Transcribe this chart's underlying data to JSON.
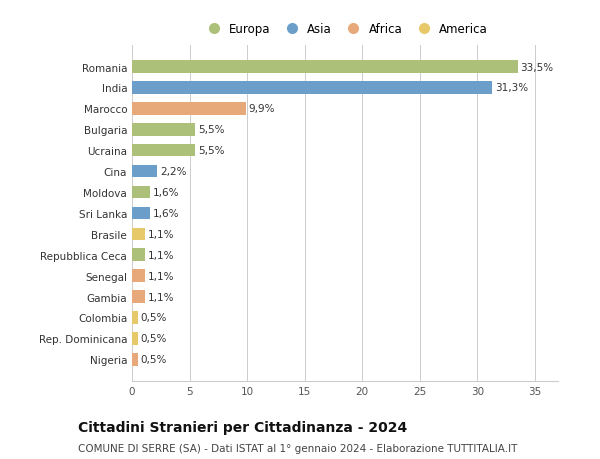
{
  "categories": [
    "Romania",
    "India",
    "Marocco",
    "Bulgaria",
    "Ucraina",
    "Cina",
    "Moldova",
    "Sri Lanka",
    "Brasile",
    "Repubblica Ceca",
    "Senegal",
    "Gambia",
    "Colombia",
    "Rep. Dominicana",
    "Nigeria"
  ],
  "values": [
    33.5,
    31.3,
    9.9,
    5.5,
    5.5,
    2.2,
    1.6,
    1.6,
    1.1,
    1.1,
    1.1,
    1.1,
    0.5,
    0.5,
    0.5
  ],
  "labels": [
    "33,5%",
    "31,3%",
    "9,9%",
    "5,5%",
    "5,5%",
    "2,2%",
    "1,6%",
    "1,6%",
    "1,1%",
    "1,1%",
    "1,1%",
    "1,1%",
    "0,5%",
    "0,5%",
    "0,5%"
  ],
  "colors": [
    "#adc07a",
    "#6b9ec9",
    "#e8a97a",
    "#adc07a",
    "#adc07a",
    "#6b9ec9",
    "#adc07a",
    "#6b9ec9",
    "#e8c96a",
    "#adc07a",
    "#e8a97a",
    "#e8a97a",
    "#e8c96a",
    "#e8c96a",
    "#e8a97a"
  ],
  "legend_labels": [
    "Europa",
    "Asia",
    "Africa",
    "America"
  ],
  "legend_colors": [
    "#adc07a",
    "#6b9ec9",
    "#e8a97a",
    "#e8c96a"
  ],
  "title": "Cittadini Stranieri per Cittadinanza - 2024",
  "subtitle": "COMUNE DI SERRE (SA) - Dati ISTAT al 1° gennaio 2024 - Elaborazione TUTTITALIA.IT",
  "xlim": [
    0,
    37
  ],
  "xticks": [
    0,
    5,
    10,
    15,
    20,
    25,
    30,
    35
  ],
  "background_color": "#ffffff",
  "grid_color": "#cccccc",
  "bar_height": 0.6,
  "title_fontsize": 10,
  "subtitle_fontsize": 7.5,
  "label_fontsize": 7.5,
  "tick_fontsize": 7.5,
  "legend_fontsize": 8.5
}
